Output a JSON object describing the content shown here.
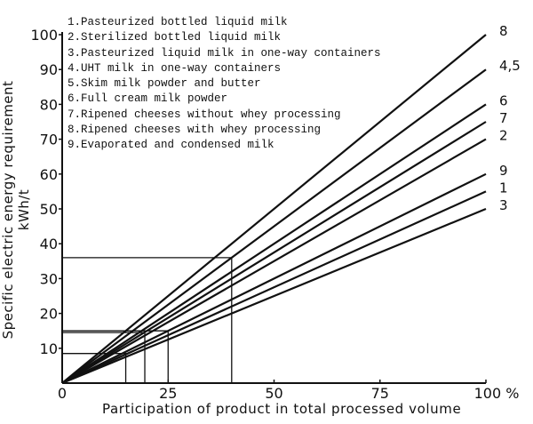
{
  "chart_data": {
    "type": "line",
    "title": "",
    "xlabel": "Participation of product in total processed volume",
    "ylabel": "Specific electric energy requirement kWh/t",
    "xlim": [
      0,
      100
    ],
    "ylim": [
      0,
      100
    ],
    "x_ticks": [
      "0",
      "25",
      "50",
      "75",
      "100 %"
    ],
    "x_tick_values": [
      0,
      25,
      50,
      75,
      100
    ],
    "y_ticks": [
      "10",
      "20",
      "30",
      "40",
      "50",
      "60",
      "70",
      "80",
      "90",
      "100"
    ],
    "y_tick_values": [
      10,
      20,
      30,
      40,
      50,
      60,
      70,
      80,
      90,
      100
    ],
    "legend": [
      "1.Pasteurized bottled liquid milk",
      "2.Sterilized bottled liquid milk",
      "3.Pasteurized liquid milk in one-way containers",
      "4.UHT milk in one-way containers",
      "5.Skim milk powder and butter",
      "6.Full cream milk powder",
      "7.Ripened cheeses without whey processing",
      "8.Ripened cheeses with whey processing",
      "9.Evaporated and condensed milk"
    ],
    "legend_position": "top-left",
    "series": [
      {
        "name": "8",
        "x": [
          0,
          100
        ],
        "y": [
          0,
          100
        ]
      },
      {
        "name": "4,5",
        "x": [
          0,
          100
        ],
        "y": [
          0,
          90
        ]
      },
      {
        "name": "6",
        "x": [
          0,
          100
        ],
        "y": [
          0,
          80
        ]
      },
      {
        "name": "7",
        "x": [
          0,
          100
        ],
        "y": [
          0,
          75
        ]
      },
      {
        "name": "2",
        "x": [
          0,
          100
        ],
        "y": [
          0,
          70
        ]
      },
      {
        "name": "9",
        "x": [
          0,
          100
        ],
        "y": [
          0,
          60
        ]
      },
      {
        "name": "1",
        "x": [
          0,
          100
        ],
        "y": [
          0,
          55
        ]
      },
      {
        "name": "3",
        "x": [
          0,
          100
        ],
        "y": [
          0,
          50
        ]
      }
    ],
    "reference_lines": [
      {
        "x": 40,
        "y": 36
      },
      {
        "x": 25,
        "y": 15
      },
      {
        "x": 19.5,
        "y": 14.5
      },
      {
        "x": 15,
        "y": 8.5
      }
    ],
    "grid": false
  }
}
